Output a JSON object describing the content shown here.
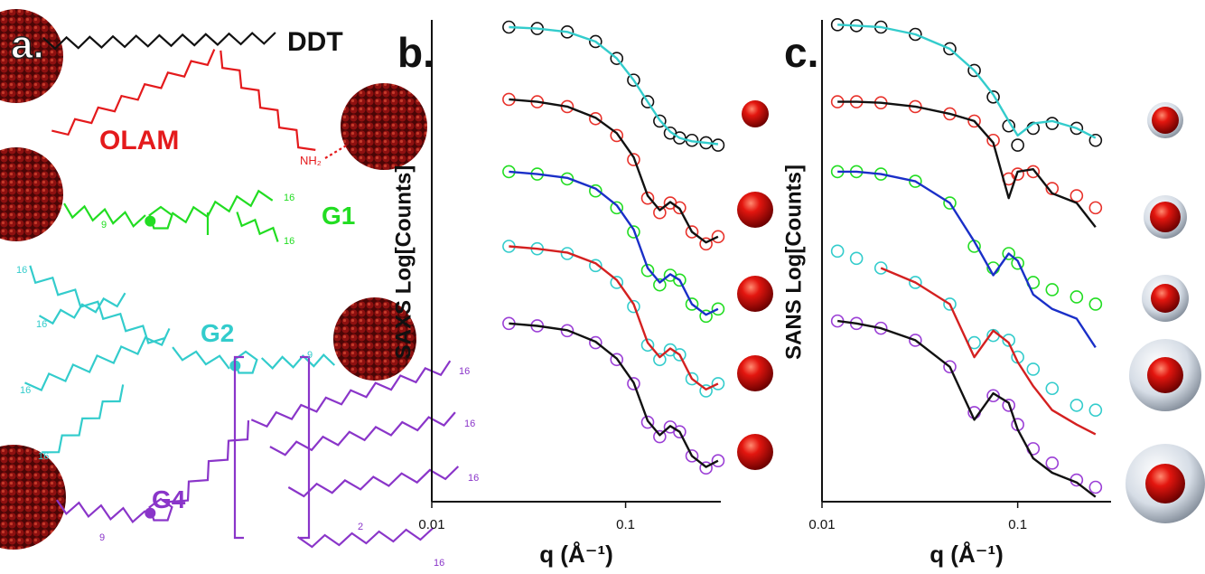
{
  "panel_a": {
    "label": "a.",
    "ligands": [
      "DDT",
      "OLAM",
      "G1",
      "G2",
      "G4"
    ],
    "amine": "NH₂",
    "subscripts": [
      "9",
      "16",
      "16",
      "16",
      "16",
      "16",
      "16",
      "9",
      "9",
      "16",
      "16",
      "16",
      "16",
      "2"
    ]
  },
  "chart_data": [
    {
      "type": "scatter",
      "title": "b.",
      "ylabel": "SAXS Log[Counts]",
      "xlabel": "q (Å⁻¹)",
      "xlog": true,
      "xlim": [
        0.01,
        0.31
      ],
      "xticks": [
        0.01,
        0.1
      ],
      "ylim": [
        0,
        10
      ],
      "x": [
        0.025,
        0.035,
        0.05,
        0.07,
        0.09,
        0.11,
        0.13,
        0.15,
        0.17,
        0.19,
        0.22,
        0.26,
        0.3
      ],
      "series": [
        {
          "mode": "markers",
          "color": "#111111",
          "values": [
            9.85,
            9.82,
            9.75,
            9.55,
            9.2,
            8.75,
            8.3,
            7.9,
            7.65,
            7.55,
            7.5,
            7.45,
            7.4
          ]
        },
        {
          "mode": "line",
          "color": "#33cccc",
          "values": [
            9.85,
            9.82,
            9.75,
            9.55,
            9.2,
            8.75,
            8.3,
            7.92,
            7.68,
            7.55,
            7.48,
            7.45,
            7.42
          ]
        },
        {
          "mode": "markers",
          "color": "#e8322b",
          "values": [
            8.35,
            8.3,
            8.2,
            7.95,
            7.6,
            7.1,
            6.3,
            6.0,
            6.2,
            6.1,
            5.6,
            5.35,
            5.5
          ]
        },
        {
          "mode": "line",
          "color": "#111111",
          "values": [
            8.35,
            8.3,
            8.2,
            7.97,
            7.65,
            7.15,
            6.35,
            6.05,
            6.22,
            6.08,
            5.6,
            5.38,
            5.5
          ]
        },
        {
          "mode": "markers",
          "color": "#22dd22",
          "values": [
            6.85,
            6.8,
            6.7,
            6.45,
            6.1,
            5.6,
            4.8,
            4.5,
            4.7,
            4.6,
            4.1,
            3.85,
            4.0
          ]
        },
        {
          "mode": "line",
          "color": "#1a2fc8",
          "values": [
            6.85,
            6.8,
            6.72,
            6.5,
            6.15,
            5.65,
            4.85,
            4.55,
            4.72,
            4.6,
            4.1,
            3.88,
            4.0
          ]
        },
        {
          "mode": "markers",
          "color": "#33cccc",
          "values": [
            5.3,
            5.25,
            5.15,
            4.9,
            4.55,
            4.05,
            3.25,
            2.95,
            3.15,
            3.05,
            2.55,
            2.3,
            2.45
          ]
        },
        {
          "mode": "line",
          "color": "#d42020",
          "values": [
            5.3,
            5.25,
            5.17,
            4.95,
            4.6,
            4.1,
            3.3,
            3.0,
            3.18,
            3.05,
            2.55,
            2.33,
            2.45
          ]
        },
        {
          "mode": "markers",
          "color": "#9b3fd6",
          "values": [
            3.7,
            3.65,
            3.55,
            3.3,
            2.95,
            2.45,
            1.65,
            1.35,
            1.55,
            1.45,
            0.95,
            0.7,
            0.85
          ]
        },
        {
          "mode": "line",
          "color": "#111111",
          "values": [
            3.7,
            3.65,
            3.56,
            3.32,
            2.97,
            2.47,
            1.68,
            1.38,
            1.57,
            1.45,
            0.95,
            0.72,
            0.85
          ]
        }
      ]
    },
    {
      "type": "scatter",
      "title": "c.",
      "ylabel": "SANS Log[Counts]",
      "xlabel": "q (Å⁻¹)",
      "xlog": true,
      "xlim": [
        0.01,
        0.3
      ],
      "xticks": [
        0.01,
        0.1
      ],
      "ylim": [
        0,
        10
      ],
      "x": [
        0.012,
        0.015,
        0.02,
        0.03,
        0.045,
        0.06,
        0.075,
        0.09,
        0.1,
        0.12,
        0.15,
        0.2,
        0.25
      ],
      "series": [
        {
          "mode": "markers",
          "color": "#111111",
          "values": [
            9.9,
            9.88,
            9.85,
            9.7,
            9.4,
            8.95,
            8.4,
            7.8,
            7.4,
            7.75,
            7.85,
            7.75,
            7.5
          ]
        },
        {
          "mode": "line",
          "color": "#33cccc",
          "values": [
            9.9,
            9.88,
            9.85,
            9.7,
            9.4,
            8.95,
            8.45,
            7.9,
            7.6,
            7.85,
            7.9,
            7.75,
            7.55
          ]
        },
        {
          "mode": "markers",
          "color": "#e8322b",
          "values": [
            8.3,
            8.3,
            8.28,
            8.2,
            8.05,
            7.9,
            7.5,
            6.7,
            6.8,
            6.85,
            6.5,
            6.35,
            6.1
          ]
        },
        {
          "mode": "line",
          "color": "#111111",
          "values": [
            8.3,
            8.3,
            8.28,
            8.2,
            8.05,
            7.9,
            7.45,
            6.3,
            6.85,
            6.9,
            6.4,
            6.2,
            5.7
          ]
        },
        {
          "mode": "markers",
          "color": "#22dd22",
          "values": [
            6.85,
            6.85,
            6.8,
            6.65,
            6.2,
            5.3,
            4.85,
            5.15,
            4.95,
            4.55,
            4.4,
            4.25,
            4.1
          ]
        },
        {
          "mode": "line",
          "color": "#1a2fc8",
          "values": [
            6.85,
            6.85,
            6.8,
            6.65,
            6.2,
            5.4,
            4.7,
            5.15,
            5.0,
            4.3,
            4.0,
            3.8,
            3.2
          ]
        },
        {
          "mode": "markers",
          "color": "#33cccc",
          "values": [
            5.2,
            5.05,
            4.85,
            4.55,
            4.1,
            3.3,
            3.45,
            3.35,
            3.0,
            2.75,
            2.35,
            2.0,
            1.9
          ]
        },
        {
          "mode": "line",
          "color": "#d42020",
          "values": [
            null,
            null,
            4.85,
            4.55,
            4.1,
            3.0,
            3.55,
            3.3,
            2.9,
            2.4,
            1.9,
            1.6,
            1.4
          ]
        },
        {
          "mode": "markers",
          "color": "#9b3fd6",
          "values": [
            3.75,
            3.7,
            3.6,
            3.35,
            2.8,
            1.85,
            2.2,
            2.0,
            1.6,
            1.1,
            0.8,
            0.45,
            0.3
          ]
        },
        {
          "mode": "line",
          "color": "#111111",
          "values": [
            3.75,
            3.7,
            3.6,
            3.35,
            2.8,
            1.7,
            2.25,
            2.05,
            1.5,
            0.9,
            0.6,
            0.4,
            0.1
          ]
        }
      ]
    }
  ]
}
